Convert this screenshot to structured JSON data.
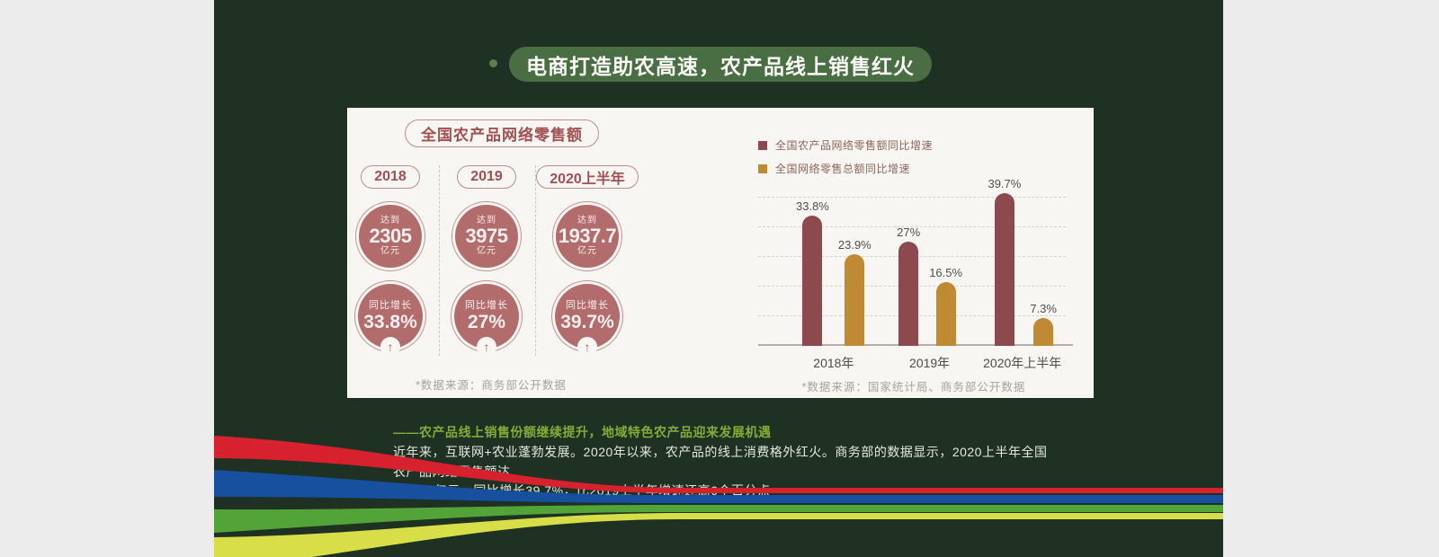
{
  "page": {
    "section_title": "电商打造助农高速，农产品线上销售红火"
  },
  "card": {
    "left": {
      "panel_title": "全国农产品网络零售额",
      "items": [
        {
          "year": "2018",
          "reach_label": "达到",
          "value": "2305",
          "unit": "亿元",
          "growth_label": "同比增长",
          "growth": "33.8%",
          "arrow": "↑"
        },
        {
          "year": "2019",
          "reach_label": "达到",
          "value": "3975",
          "unit": "亿元",
          "growth_label": "同比增长",
          "growth": "27%",
          "arrow": "↑"
        },
        {
          "year": "2020上半年",
          "reach_label": "达到",
          "value": "1937.7",
          "unit": "亿元",
          "growth_label": "同比增长",
          "growth": "39.7%",
          "arrow": "↑"
        }
      ],
      "source_note": "*数据来源：商务部公开数据"
    },
    "right": {
      "source_note": "*数据来源：国家统计局、商务部公开数据"
    }
  },
  "chart_data": {
    "type": "bar",
    "categories": [
      "2018年",
      "2019年",
      "2020年上半年"
    ],
    "series": [
      {
        "name": "全国农产品网络零售额同比增速",
        "values": [
          33.8,
          27,
          39.7
        ],
        "color": "#8c4a4f"
      },
      {
        "name": "全国网络零售总额同比增速",
        "values": [
          23.9,
          16.5,
          7.3
        ],
        "color": "#bf8a33"
      }
    ],
    "value_suffix": "%",
    "title": "",
    "xlabel": "",
    "ylabel": "",
    "ylim": [
      0,
      42
    ],
    "grid": "dashed-horizontal",
    "legend_position": "top-left",
    "data_labels": true
  },
  "footer": {
    "headline": "——农产品线上销售份额继续提升，地域特色农产品迎来发展机遇",
    "body_line1": "近年来，互联网+农业蓬勃发展。2020年以来，农产品的线上消费格外红火。商务部的数据显示，2020上半年全国农产品网络零售额达",
    "body_line2": "1937.7亿元，同比增长39.7%，比2019上半年增速还高6个百分点"
  },
  "colors": {
    "page_background": "#ececec",
    "band_green": "#1e3122",
    "title_pill_green": "#4a6e44",
    "card_background": "#f8f6f2",
    "maroon_circle": "#b26c6c",
    "maroon_accent": "#a14f50",
    "bar_maroon": "#8c4a4f",
    "bar_gold": "#bf8a33",
    "headline_green": "#85ac36",
    "ribbon_red": "#d7212e",
    "ribbon_blue": "#16509e",
    "ribbon_green": "#53a438",
    "ribbon_yellow": "#d7de48"
  }
}
